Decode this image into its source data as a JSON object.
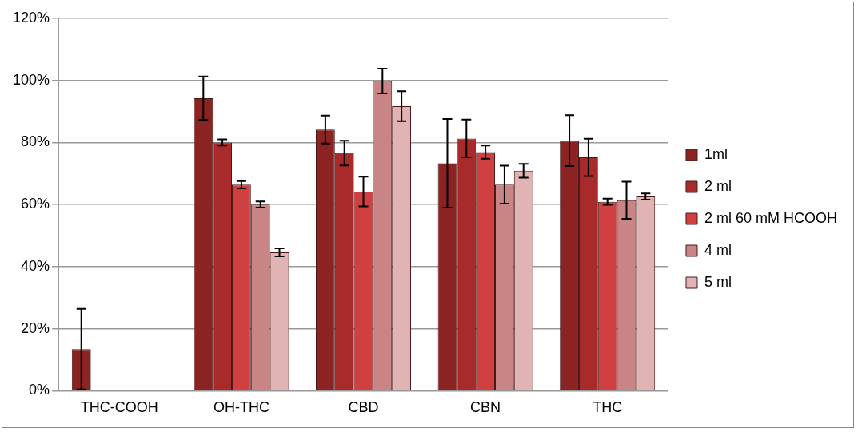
{
  "chart_data": {
    "type": "bar",
    "categories": [
      "THC-COOH",
      "OH-THC",
      "CBD",
      "CBN",
      "THC"
    ],
    "series": [
      {
        "name": "1ml",
        "color": "#8b2323",
        "values": [
          13.4,
          94.3,
          84.2,
          73.3,
          80.6
        ],
        "errors": [
          13,
          7,
          4.5,
          14.3,
          8.2
        ]
      },
      {
        "name": "2 ml",
        "color": "#a82a2a",
        "values": [
          null,
          80,
          76.6,
          81.3,
          75.2
        ],
        "errors": [
          null,
          1,
          4,
          6.1,
          6
        ]
      },
      {
        "name": "2 ml 60 mM HCOOH",
        "color": "#d04040",
        "values": [
          null,
          66.4,
          64.2,
          76.9,
          60.9
        ],
        "errors": [
          null,
          1.2,
          4.8,
          2.1,
          1
        ]
      },
      {
        "name": "4 ml",
        "color": "#c98585",
        "values": [
          null,
          60,
          99.8,
          66.4,
          61.4
        ],
        "errors": [
          null,
          1,
          4,
          6.1,
          6
        ]
      },
      {
        "name": "5 ml",
        "color": "#e0b4b4",
        "values": [
          null,
          44.6,
          91.7,
          70.9,
          62.6
        ],
        "errors": [
          null,
          1.3,
          4.8,
          2.2,
          1
        ]
      }
    ],
    "ylim": [
      0,
      120
    ],
    "yticks": [
      {
        "value": 0,
        "label": "0%"
      },
      {
        "value": 20,
        "label": "20%"
      },
      {
        "value": 40,
        "label": "40%"
      },
      {
        "value": 60,
        "label": "60%"
      },
      {
        "value": 80,
        "label": "80%"
      },
      {
        "value": 100,
        "label": "100%"
      },
      {
        "value": 120,
        "label": "120%"
      }
    ],
    "grid": "y",
    "legend": "right"
  }
}
